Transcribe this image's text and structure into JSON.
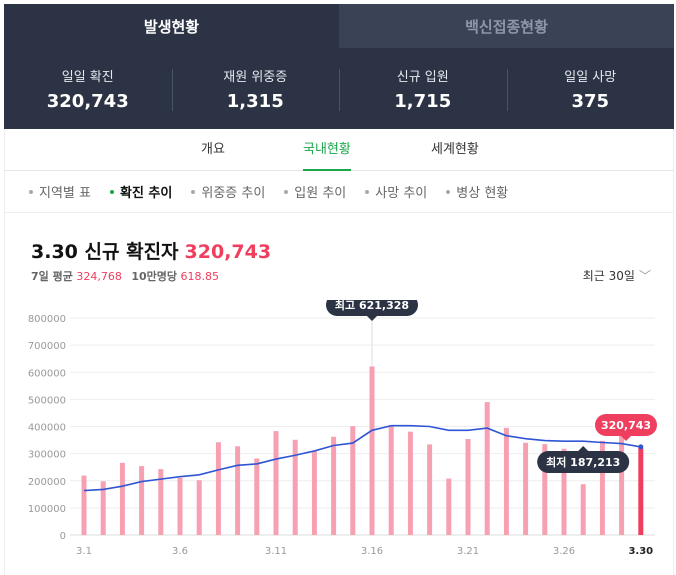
{
  "top_tabs": [
    {
      "label": "발생현황"
    },
    {
      "label": "백신접종현황"
    }
  ],
  "stats": [
    {
      "label": "일일 확진",
      "value": "320,743"
    },
    {
      "label": "재원 위중증",
      "value": "1,315"
    },
    {
      "label": "신규 입원",
      "value": "1,715"
    },
    {
      "label": "일일 사망",
      "value": "375"
    }
  ],
  "sub_tabs": [
    {
      "label": "개요"
    },
    {
      "label": "국내현황"
    },
    {
      "label": "세계현황"
    }
  ],
  "chips": [
    {
      "label": "지역별 표"
    },
    {
      "label": "확진 추이"
    },
    {
      "label": "위중증 추이"
    },
    {
      "label": "입원 추이"
    },
    {
      "label": "사망 추이"
    },
    {
      "label": "병상 현황"
    }
  ],
  "panel": {
    "date": "3.30",
    "title_label": "신규 확진자",
    "title_value": "320,743",
    "avg_label": "7일 평균",
    "avg_value": "324,768",
    "per100k_label": "10만명당",
    "per100k_value": "618.85",
    "period_label": "최근 30일"
  },
  "colors": {
    "bar": "#f7a0b2",
    "bar_highlight": "#f03e5e",
    "line": "#2f55d4",
    "accent_green": "#1aa64b",
    "header_bg": "#2b3345"
  },
  "chart_data": {
    "type": "bar",
    "title": "3.30 신규 확진자 320,743",
    "y_ticks": [
      "800000",
      "700000",
      "600000",
      "500000",
      "400000",
      "300000",
      "200000",
      "100000",
      "0"
    ],
    "x_ticks": [
      {
        "index": 0,
        "label": "3.1"
      },
      {
        "index": 5,
        "label": "3.6"
      },
      {
        "index": 10,
        "label": "3.11"
      },
      {
        "index": 15,
        "label": "3.16"
      },
      {
        "index": 20,
        "label": "3.21"
      },
      {
        "index": 25,
        "label": "3.26"
      },
      {
        "index": 29,
        "label": "3.30"
      }
    ],
    "ylim": [
      0,
      800000
    ],
    "grid": true,
    "categories": [
      "3.1",
      "3.2",
      "3.3",
      "3.4",
      "3.5",
      "3.6",
      "3.7",
      "3.8",
      "3.9",
      "3.10",
      "3.11",
      "3.12",
      "3.13",
      "3.14",
      "3.15",
      "3.16",
      "3.17",
      "3.18",
      "3.19",
      "3.20",
      "3.21",
      "3.22",
      "3.23",
      "3.24",
      "3.25",
      "3.26",
      "3.27",
      "3.28",
      "3.29",
      "3.30"
    ],
    "series": [
      {
        "values": [
          219000,
          198000,
          266000,
          254000,
          243000,
          210000,
          202000,
          342000,
          327000,
          282000,
          383000,
          351000,
          310000,
          362000,
          401000,
          621328,
          401000,
          381000,
          334000,
          208000,
          354000,
          490000,
          395000,
          340000,
          335000,
          318000,
          187213,
          347000,
          425000,
          320743
        ]
      },
      {
        "values": [
          164000,
          168000,
          180000,
          197000,
          206000,
          215000,
          222000,
          240000,
          257000,
          262000,
          280000,
          294000,
          310000,
          330000,
          339000,
          386000,
          403000,
          403000,
          400000,
          386000,
          386000,
          394000,
          366000,
          355000,
          348000,
          346000,
          346000,
          341000,
          337000,
          324768
        ]
      }
    ],
    "annotations": {
      "max_label": "최고 621,328",
      "min_label": "최저 187,213",
      "current_label": "320,743"
    }
  }
}
